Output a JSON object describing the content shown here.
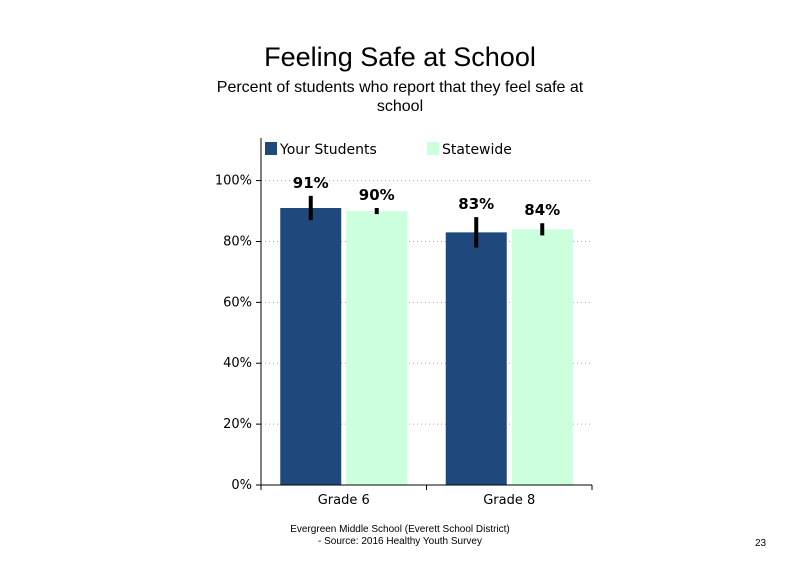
{
  "slide": {
    "title": "Feeling Safe at School",
    "subtitle": "Percent of students  who report that they feel safe at school",
    "footer_line1": "Evergreen Middle School (Everett School District)",
    "footer_line2": "- Source: 2016 Healthy  Youth Survey",
    "page_number": "23"
  },
  "chart_data": {
    "type": "bar",
    "categories": [
      "Grade 6",
      "Grade 8"
    ],
    "series": [
      {
        "name": "Your Students",
        "values": [
          91,
          83
        ],
        "labels": [
          "91%",
          "83%"
        ],
        "error": [
          [
            87,
            95
          ],
          [
            78,
            88
          ]
        ],
        "color": "#1f497d"
      },
      {
        "name": "Statewide",
        "values": [
          90,
          84
        ],
        "labels": [
          "90%",
          "84%"
        ],
        "error": [
          [
            89,
            91
          ],
          [
            82,
            86
          ]
        ],
        "color": "#ccffdd"
      }
    ],
    "yticks": [
      "0%",
      "20%",
      "40%",
      "60%",
      "80%",
      "100%"
    ],
    "ytick_values": [
      0,
      20,
      40,
      60,
      80,
      100
    ],
    "ylim": [
      0,
      114
    ],
    "grid": "dotted horizontal",
    "legend_position": "top-left"
  }
}
